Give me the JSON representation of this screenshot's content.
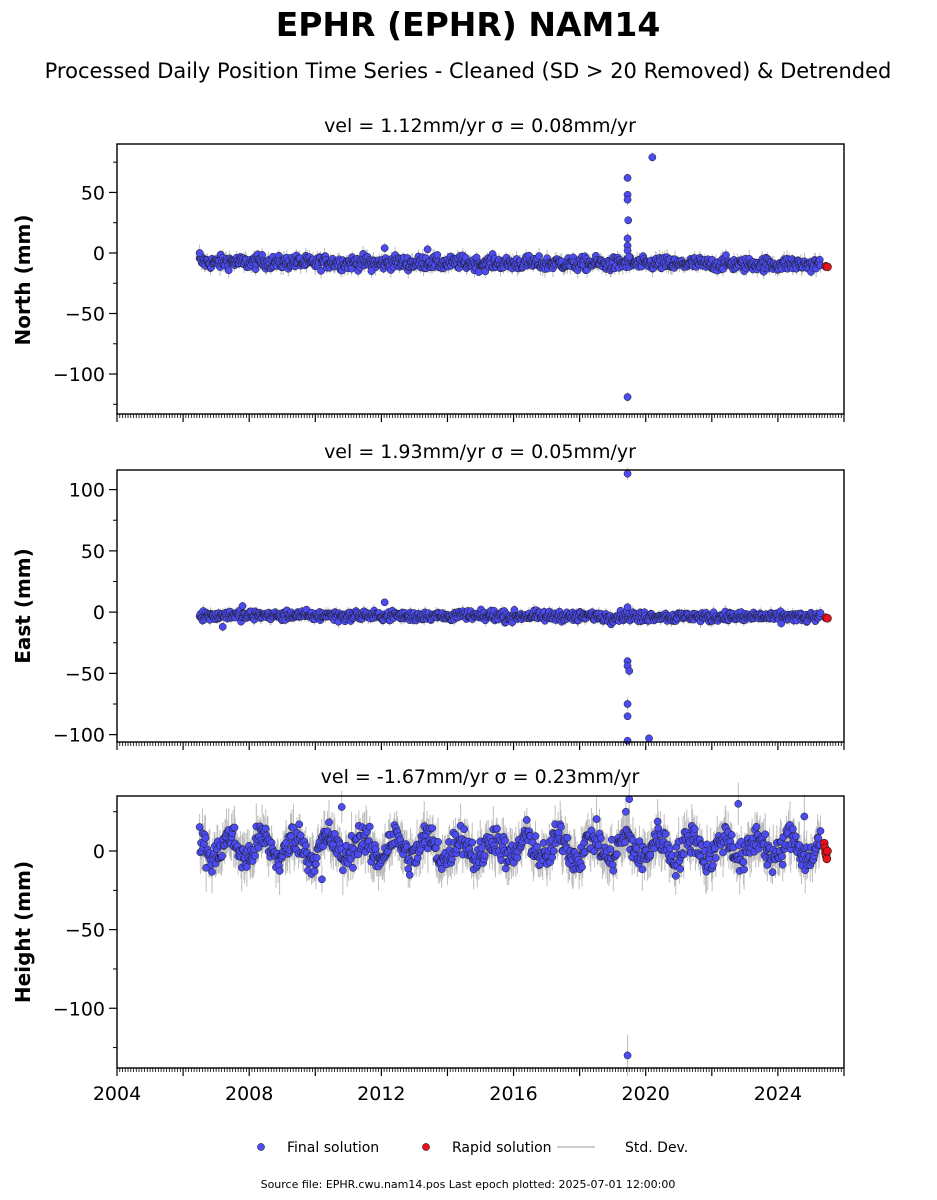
{
  "figure": {
    "title": "EPHR (EPHR) NAM14",
    "subtitle": "Processed Daily Position Time Series - Cleaned (SD > 20 Removed) & Detrended",
    "source_note": "Source file: EPHR.cwu.nam14.pos  Last epoch plotted: 2025-07-01 12:00:00"
  },
  "legend": {
    "final": "Final solution",
    "rapid": "Rapid solution",
    "std": "Std. Dev."
  },
  "colors": {
    "final": "#4b4bf0",
    "rapid": "#e8101a",
    "std": "#bdbdbd",
    "marker_edge": "#1a1a1a"
  },
  "chart_data": [
    {
      "type": "scatter",
      "panel": "north",
      "title": "vel = 1.12mm/yr   σ = 0.08mm/yr",
      "ylabel": "North (mm)",
      "xlim": [
        2004,
        2026
      ],
      "ylim": [
        -133,
        90
      ],
      "yticks": [
        50,
        0,
        -50,
        -100
      ],
      "x_start": 2006.5,
      "x_end": 2025.3,
      "center": -7.5,
      "trend": -2.0,
      "noise": 2.8,
      "amp": 0.5,
      "err": 4,
      "outliers": [
        {
          "x": 2019.45,
          "y": 62
        },
        {
          "x": 2019.45,
          "y": 48
        },
        {
          "x": 2019.45,
          "y": 44
        },
        {
          "x": 2019.47,
          "y": 27
        },
        {
          "x": 2019.45,
          "y": 12
        },
        {
          "x": 2019.45,
          "y": 6
        },
        {
          "x": 2019.45,
          "y": 2
        },
        {
          "x": 2019.5,
          "y": -3
        },
        {
          "x": 2019.45,
          "y": -119
        },
        {
          "x": 2020.2,
          "y": 79
        },
        {
          "x": 2012.1,
          "y": 4
        },
        {
          "x": 2013.4,
          "y": 3
        },
        {
          "x": 2011.7,
          "y": -15
        },
        {
          "x": 2006.5,
          "y": 0
        }
      ],
      "rapid": [
        {
          "x": 2025.45,
          "y": -11
        },
        {
          "x": 2025.5,
          "y": -11.5
        }
      ]
    },
    {
      "type": "scatter",
      "panel": "east",
      "title": "vel = 1.93mm/yr   σ = 0.05mm/yr",
      "ylabel": "East (mm)",
      "xlim": [
        2004,
        2026
      ],
      "ylim": [
        -106,
        116
      ],
      "yticks": [
        100,
        50,
        0,
        -50,
        -100
      ],
      "x_start": 2006.5,
      "x_end": 2025.3,
      "center": -2.5,
      "trend": -1.5,
      "noise": 2.0,
      "amp": 0.5,
      "err": 3,
      "outliers": [
        {
          "x": 2019.45,
          "y": 113
        },
        {
          "x": 2019.45,
          "y": -40
        },
        {
          "x": 2019.45,
          "y": -44
        },
        {
          "x": 2019.5,
          "y": -48
        },
        {
          "x": 2019.45,
          "y": -75
        },
        {
          "x": 2019.45,
          "y": -85
        },
        {
          "x": 2019.45,
          "y": -105
        },
        {
          "x": 2020.1,
          "y": -103
        },
        {
          "x": 2012.1,
          "y": 8
        },
        {
          "x": 2007.2,
          "y": -12
        },
        {
          "x": 2007.8,
          "y": 5
        },
        {
          "x": 2019.45,
          "y": 4
        }
      ],
      "rapid": [
        {
          "x": 2025.45,
          "y": -4.5
        },
        {
          "x": 2025.5,
          "y": -5
        }
      ]
    },
    {
      "type": "scatter",
      "panel": "height",
      "title": "vel = -1.67mm/yr   σ = 0.23mm/yr",
      "ylabel": "Height (mm)",
      "xlim": [
        2004,
        2026
      ],
      "ylim": [
        -138,
        35
      ],
      "yticks": [
        0,
        -50,
        -100
      ],
      "xticks": [
        2004,
        2008,
        2012,
        2016,
        2020,
        2024
      ],
      "x_start": 2006.5,
      "x_end": 2025.3,
      "center": 2,
      "trend": 0,
      "noise": 5,
      "amp": 7,
      "err": 9,
      "outliers": [
        {
          "x": 2019.45,
          "y": -130
        },
        {
          "x": 2019.5,
          "y": 33
        },
        {
          "x": 2019.4,
          "y": 25
        },
        {
          "x": 2022.8,
          "y": 30
        },
        {
          "x": 2024.8,
          "y": 22
        },
        {
          "x": 2010.8,
          "y": 28
        },
        {
          "x": 2010.2,
          "y": -18
        }
      ],
      "rapid": [
        {
          "x": 2025.4,
          "y": 5
        },
        {
          "x": 2025.42,
          "y": 2
        },
        {
          "x": 2025.44,
          "y": -1
        },
        {
          "x": 2025.46,
          "y": -3
        },
        {
          "x": 2025.48,
          "y": -5
        },
        {
          "x": 2025.5,
          "y": 0
        }
      ]
    }
  ]
}
